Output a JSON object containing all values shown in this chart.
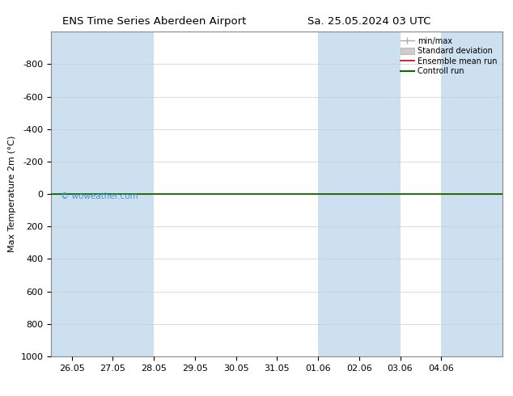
{
  "title_left": "ENS Time Series Aberdeen Airport",
  "title_right": "Sa. 25.05.2024 03 UTC",
  "ylabel": "Max Temperature 2m (°C)",
  "ylim_bottom": 1000,
  "ylim_top": -1000,
  "yticks": [
    -800,
    -600,
    -400,
    -200,
    0,
    200,
    400,
    600,
    800,
    1000
  ],
  "x_tick_labels": [
    "26.05",
    "27.05",
    "28.05",
    "29.05",
    "30.05",
    "31.05",
    "01.06",
    "02.06",
    "03.06",
    "04.06"
  ],
  "x_start": 0.0,
  "x_end": 10.0,
  "xlim": [
    -0.5,
    10.5
  ],
  "shaded_bands": [
    [
      -0.5,
      1.0
    ],
    [
      1.0,
      2.0
    ],
    [
      6.0,
      7.0
    ],
    [
      7.0,
      8.0
    ],
    [
      9.0,
      10.5
    ]
  ],
  "band_color": "#cce0f0",
  "control_run_y": 0,
  "control_run_color": "#007000",
  "ensemble_mean_color": "#cc0000",
  "background_color": "#ffffff",
  "watermark": "© woweather.com",
  "watermark_color": "#4499cc",
  "legend_labels": [
    "min/max",
    "Standard deviation",
    "Ensemble mean run",
    "Controll run"
  ],
  "legend_line_colors": [
    "#aaaaaa",
    "#cccccc",
    "#cc0000",
    "#007000"
  ],
  "font_size": 8,
  "title_font_size": 9.5
}
